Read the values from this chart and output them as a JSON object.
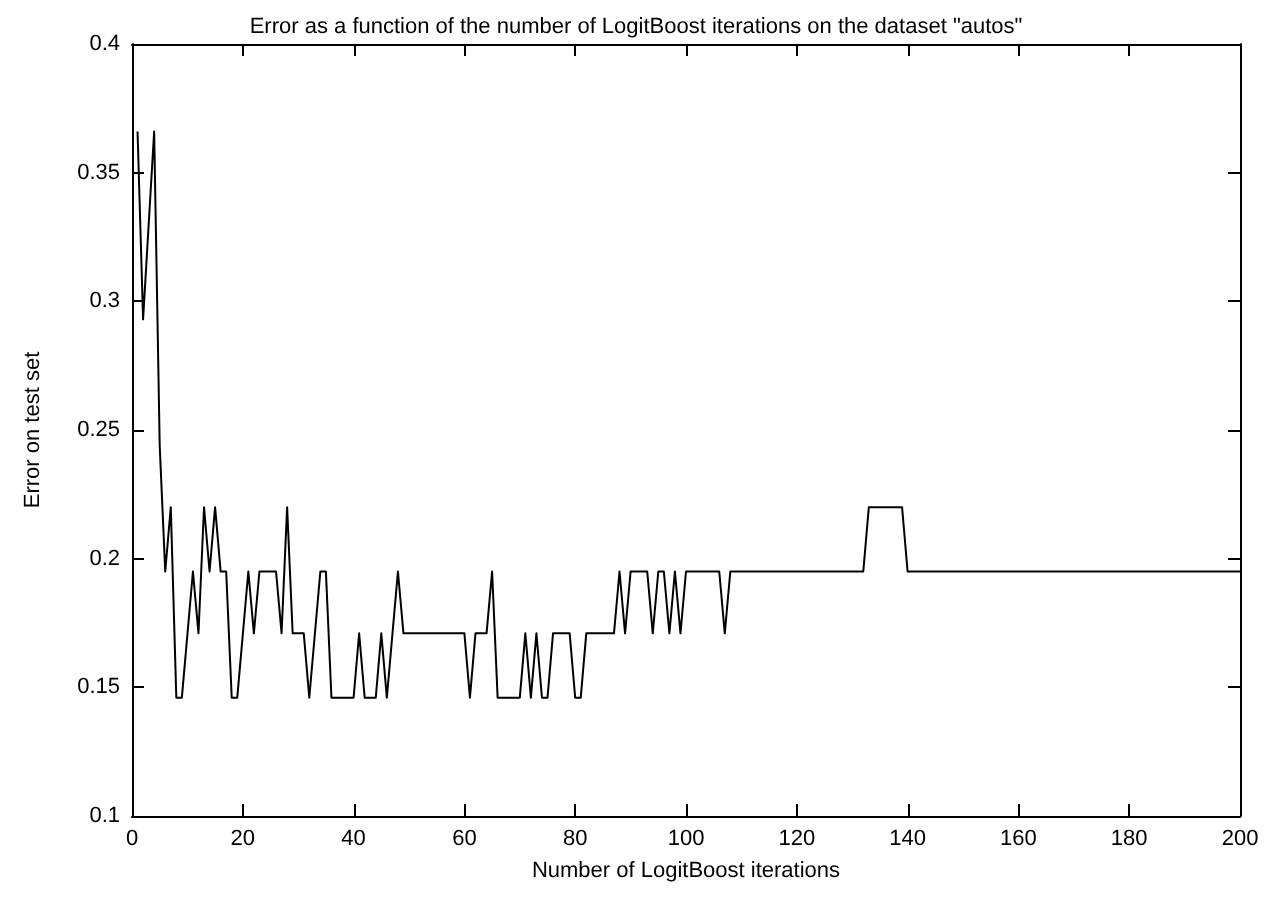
{
  "chart_data": {
    "type": "line",
    "title": "Error as a function of the number of LogitBoost iterations on the dataset \"autos\"",
    "xlabel": "Number of LogitBoost iterations",
    "ylabel": "Error on test set",
    "series": [
      {
        "color": "#000000",
        "x": [
          1,
          2,
          4,
          5,
          6,
          7,
          8,
          9,
          11,
          12,
          13,
          14,
          15,
          16,
          17,
          18,
          19,
          21,
          22,
          23,
          26,
          27,
          28,
          29,
          31,
          32,
          34,
          35,
          36,
          40,
          41,
          42,
          44,
          45,
          46,
          48,
          49,
          60,
          61,
          62,
          64,
          65,
          66,
          70,
          71,
          72,
          73,
          74,
          75,
          76,
          79,
          80,
          81,
          82,
          87,
          88,
          89,
          90,
          93,
          94,
          95,
          96,
          97,
          98,
          99,
          100,
          106,
          107,
          108,
          109,
          132,
          133,
          139,
          140,
          200
        ],
        "values": [
          0.366,
          0.293,
          0.366,
          0.244,
          0.195,
          0.22,
          0.146,
          0.146,
          0.195,
          0.171,
          0.22,
          0.195,
          0.22,
          0.195,
          0.195,
          0.146,
          0.146,
          0.195,
          0.171,
          0.195,
          0.195,
          0.171,
          0.22,
          0.171,
          0.171,
          0.146,
          0.195,
          0.195,
          0.146,
          0.146,
          0.171,
          0.146,
          0.146,
          0.171,
          0.146,
          0.195,
          0.171,
          0.171,
          0.146,
          0.171,
          0.171,
          0.195,
          0.146,
          0.146,
          0.171,
          0.146,
          0.171,
          0.146,
          0.146,
          0.171,
          0.171,
          0.146,
          0.146,
          0.171,
          0.171,
          0.195,
          0.171,
          0.195,
          0.195,
          0.171,
          0.195,
          0.195,
          0.171,
          0.195,
          0.171,
          0.195,
          0.195,
          0.171,
          0.195,
          0.195,
          0.195,
          0.22,
          0.22,
          0.195,
          0.195
        ]
      }
    ],
    "xlim": [
      0,
      200
    ],
    "xticks": [
      0,
      20,
      40,
      60,
      80,
      100,
      120,
      140,
      160,
      180,
      200
    ],
    "ylim": [
      0.1,
      0.4
    ],
    "yticks": [
      0.1,
      0.15,
      0.2,
      0.25,
      0.3,
      0.35,
      0.4
    ],
    "grid": false,
    "marker": "none",
    "line_style": "solid"
  }
}
